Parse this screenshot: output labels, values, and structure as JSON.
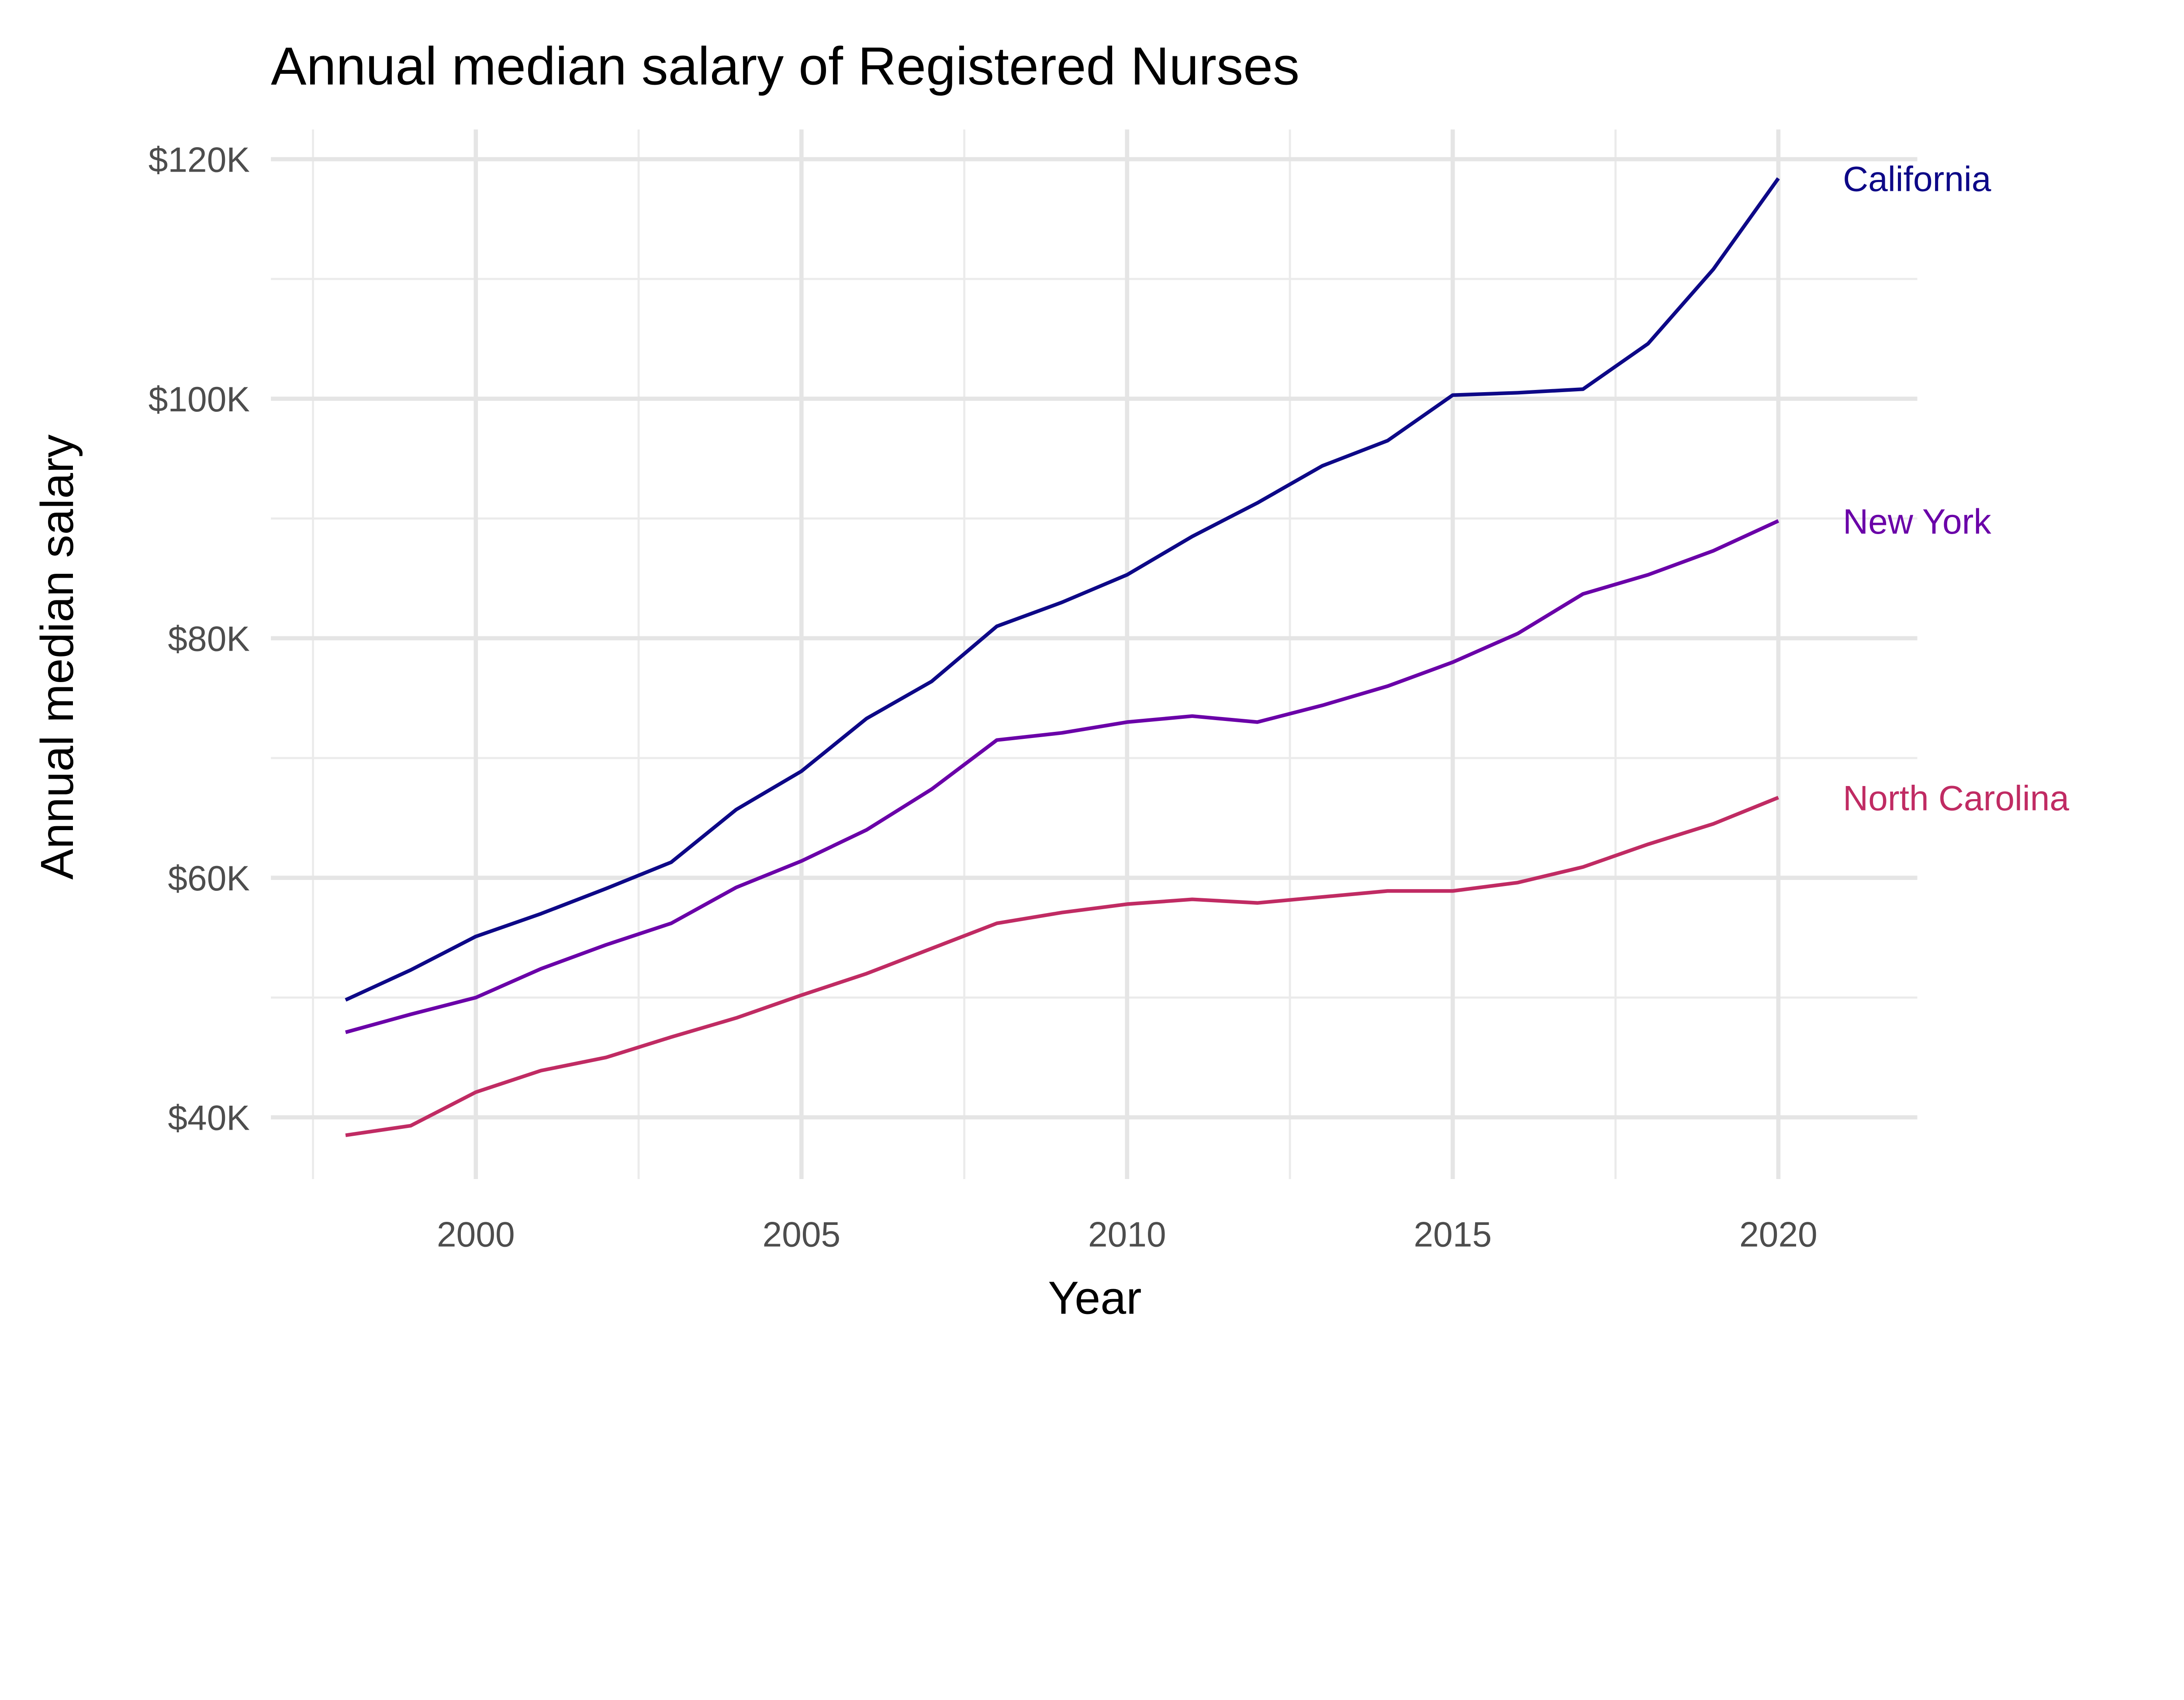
{
  "chart_data": {
    "type": "line",
    "title": "Annual median salary of Registered Nurses",
    "xlabel": "Year",
    "ylabel": "Annual median salary",
    "xlim": [
      1997.5,
      2022.2
    ],
    "ylim": [
      34500,
      122500
    ],
    "grid": true,
    "legend": "direct labels at line ends (right)",
    "x_ticks": [
      2000,
      2005,
      2010,
      2015,
      2020
    ],
    "x_tick_labels": [
      "2000",
      "2005",
      "2010",
      "2015",
      "2020"
    ],
    "y_ticks": [
      40000,
      60000,
      80000,
      100000,
      120000
    ],
    "y_tick_labels": [
      "$40K",
      "$60K",
      "$80K",
      "$100K",
      "$120K"
    ],
    "x": [
      1998,
      1999,
      2000,
      2001,
      2002,
      2003,
      2004,
      2005,
      2006,
      2007,
      2008,
      2009,
      2010,
      2011,
      2012,
      2013,
      2014,
      2015,
      2016,
      2017,
      2018,
      2019,
      2020
    ],
    "series": [
      {
        "name": "California",
        "color": "#0D0887",
        "values": [
          49800,
          52300,
          55100,
          57000,
          59100,
          61300,
          65700,
          68900,
          73300,
          76400,
          81000,
          83000,
          85300,
          88500,
          91300,
          94400,
          96500,
          100300,
          100500,
          100800,
          104600,
          110800,
          118400
        ]
      },
      {
        "name": "New York",
        "color": "#6A00A8",
        "values": [
          47100,
          48600,
          50000,
          52400,
          54400,
          56200,
          59200,
          61400,
          64000,
          67400,
          71500,
          72100,
          73000,
          73500,
          73000,
          74400,
          76000,
          78000,
          80400,
          83700,
          85300,
          87300,
          89800
        ]
      },
      {
        "name": "North Carolina",
        "color": "#C02B63",
        "values": [
          38500,
          39300,
          42100,
          43900,
          45000,
          46700,
          48300,
          50200,
          52000,
          54100,
          56200,
          57100,
          57800,
          58200,
          57900,
          58400,
          58900,
          58900,
          59600,
          60900,
          62800,
          64500,
          66700
        ]
      }
    ]
  }
}
